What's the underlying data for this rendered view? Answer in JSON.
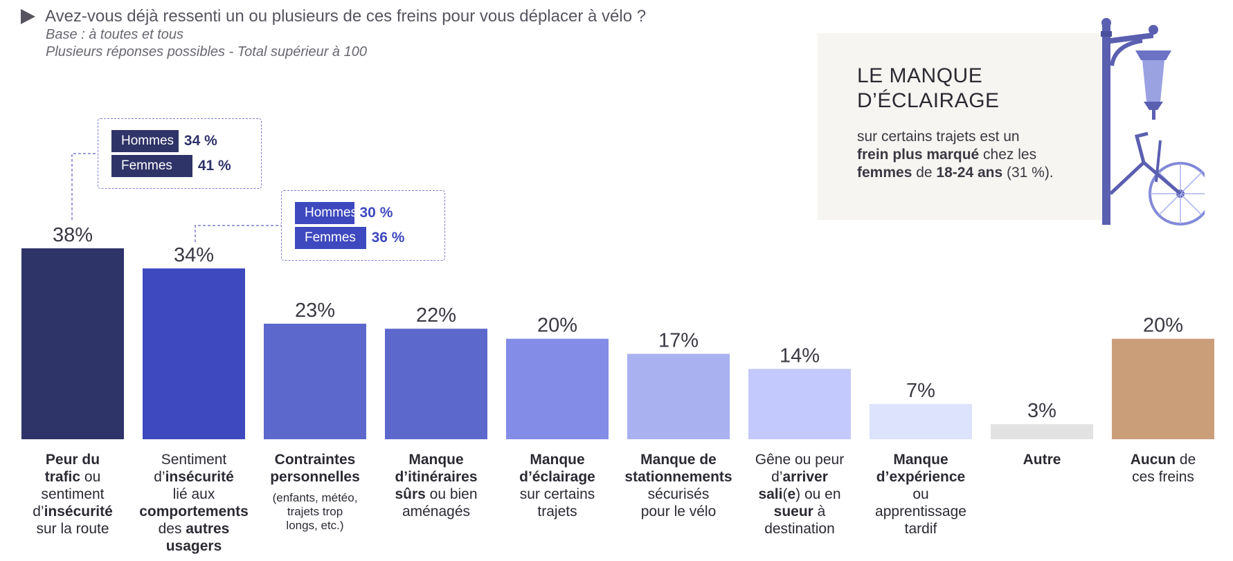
{
  "header": {
    "question": "Avez-vous déjà ressenti un ou plusieurs de ces freins pour vous déplacer à vélo ?",
    "base": "Base : à toutes et tous",
    "note": "Plusieurs réponses possibles - Total supérieur à 100"
  },
  "chart_data": {
    "type": "bar",
    "title": "Avez-vous déjà ressenti un ou plusieurs de ces freins pour vous déplacer à vélo ?",
    "unit": "%",
    "ylim": [
      0,
      38
    ],
    "categories": [
      "Peur du trafic ou sentiment d'insécurité sur la route",
      "Sentiment d'insécurité lié aux comportements des autres usagers",
      "Contraintes personnelles (enfants, météo, trajets trop longs, etc.)",
      "Manque d'itinéraires sûrs ou bien aménagés",
      "Manque d'éclairage sur certains trajets",
      "Manque de stationnements sécurisés pour le vélo",
      "Gêne ou peur d'arriver sali(e) ou en sueur à destination",
      "Manque d'expérience ou apprentissage tardif",
      "Autre",
      "Aucun de ces freins"
    ],
    "values": [
      38,
      34,
      23,
      22,
      20,
      17,
      14,
      7,
      3,
      20
    ],
    "value_labels": [
      "38%",
      "34%",
      "23%",
      "22%",
      "20%",
      "17%",
      "14%",
      "7%",
      "3%",
      "20%"
    ],
    "colors": [
      "#2e3368",
      "#3e48bf",
      "#5c68cb",
      "#5c68cb",
      "#838ce6",
      "#a9b1f0",
      "#c3c9fc",
      "#dde2fd",
      "#e2e2e2",
      "#cb9e7a"
    ],
    "gender_split": [
      {
        "category_index": 0,
        "rows": [
          {
            "label": "Hommes",
            "value": 34,
            "text": "34 %"
          },
          {
            "label": "Femmes",
            "value": 41,
            "text": "41 %"
          }
        ],
        "color": "#2e3368"
      },
      {
        "category_index": 1,
        "rows": [
          {
            "label": "Hommes",
            "value": 30,
            "text": "30 %"
          },
          {
            "label": "Femmes",
            "value": 36,
            "text": "36 %"
          }
        ],
        "color": "#3e48bf"
      }
    ]
  },
  "labels": [
    [
      {
        "t": "Peur du",
        "b": true
      },
      {
        "t": "\n",
        "b": false
      },
      {
        "t": "trafic",
        "b": true
      },
      {
        "t": " ou\nsentiment\nd’",
        "b": false
      },
      {
        "t": "insécurité",
        "b": true
      },
      {
        "t": "\nsur la route",
        "b": false
      }
    ],
    [
      {
        "t": "Sentiment\nd’",
        "b": false
      },
      {
        "t": "insécurité",
        "b": true
      },
      {
        "t": "\nlié aux\n",
        "b": false
      },
      {
        "t": "comportements",
        "b": true
      },
      {
        "t": "\ndes ",
        "b": false
      },
      {
        "t": "autres\nusagers",
        "b": true
      }
    ],
    [
      {
        "t": "Contraintes\npersonnelles",
        "b": true
      }
    ],
    [
      {
        "t": "Manque\nd’itinéraires\nsûrs",
        "b": true
      },
      {
        "t": " ou bien\naménagés",
        "b": false
      }
    ],
    [
      {
        "t": "Manque\nd’éclairage",
        "b": true
      },
      {
        "t": "\nsur certains\ntrajets",
        "b": false
      }
    ],
    [
      {
        "t": "Manque de\nstationnements",
        "b": true
      },
      {
        "t": "\nsécurisés\npour le vélo",
        "b": false
      }
    ],
    [
      {
        "t": "Gêne ou peur\nd’",
        "b": false
      },
      {
        "t": "arriver\nsali",
        "b": true
      },
      {
        "t": "(",
        "b": false
      },
      {
        "t": "e",
        "b": true
      },
      {
        "t": ") ou en\n",
        "b": false
      },
      {
        "t": "sueur",
        "b": true
      },
      {
        "t": " à\ndestination",
        "b": false
      }
    ],
    [
      {
        "t": "Manque\nd’expérience",
        "b": true
      },
      {
        "t": "\nou\napprentissage\ntardif",
        "b": false
      }
    ],
    [
      {
        "t": "Autre",
        "b": true
      }
    ],
    [
      {
        "t": "Aucun",
        "b": true
      },
      {
        "t": " de\nces freins",
        "b": false
      }
    ]
  ],
  "label_notes": {
    "2": "(enfants, météo,\ntrajets trop\nlongs, etc.)"
  },
  "info_panel": {
    "title": "LE MANQUE\nD’ÉCLAIRAGE",
    "text_parts": [
      {
        "t": "sur certains trajets est un\n",
        "b": false
      },
      {
        "t": "frein plus marqué",
        "b": true
      },
      {
        "t": " chez les\n",
        "b": false
      },
      {
        "t": "femmes",
        "b": true
      },
      {
        "t": " de ",
        "b": false
      },
      {
        "t": "18-24 ans",
        "b": true
      },
      {
        "t": " (31 %).",
        "b": false
      }
    ]
  },
  "icons": {
    "lamp": "street-lamp-bicycle-icon"
  }
}
